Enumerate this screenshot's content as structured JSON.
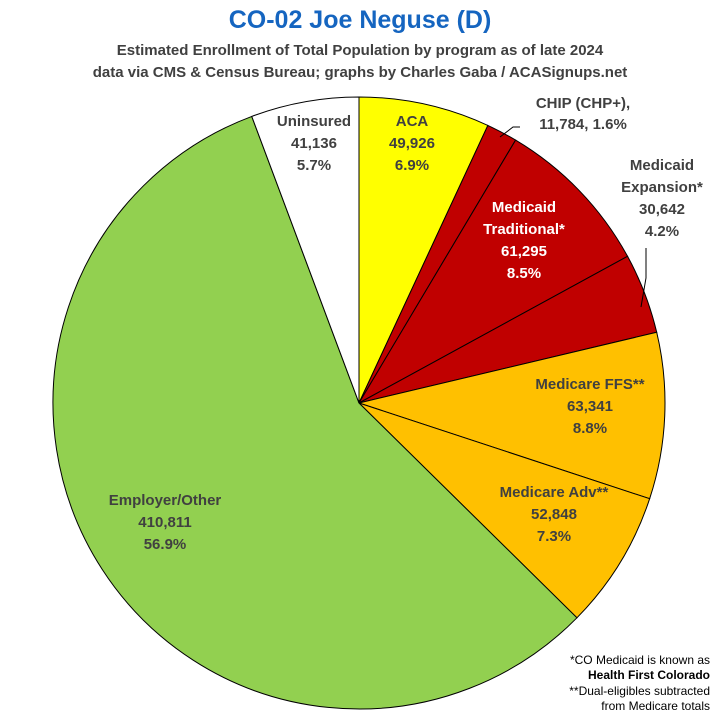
{
  "header": {
    "title": "CO-02 Joe Neguse (D)",
    "subtitle1": "Estimated Enrollment of Total Population by program as of late 2024",
    "subtitle2": "data via CMS & Census Bureau; graphs by Charles Gaba / ACASignups.net"
  },
  "chart_data": {
    "type": "pie",
    "slices": [
      {
        "label": [
          "ACA"
        ],
        "value_text": "49,926",
        "pct_text": "6.9%",
        "value": 49926,
        "color": "#ffff00",
        "text_color": "#404040"
      },
      {
        "label": [
          "CHIP (CHP+),"
        ],
        "value_text": "11,784",
        "pct_text": "1.6%",
        "value": 11784,
        "color": "#c00000",
        "text_color": "#404040"
      },
      {
        "label": [
          "Medicaid",
          "Traditional*"
        ],
        "value_text": "61,295",
        "pct_text": "8.5%",
        "value": 61295,
        "color": "#c00000",
        "text_color": "#ffffff"
      },
      {
        "label": [
          "Medicaid",
          "Expansion*"
        ],
        "value_text": "30,642",
        "pct_text": "4.2%",
        "value": 30642,
        "color": "#c00000",
        "text_color": "#404040"
      },
      {
        "label": [
          "Medicare FFS**"
        ],
        "value_text": "63,341",
        "pct_text": "8.8%",
        "value": 63341,
        "color": "#ffc000",
        "text_color": "#404040"
      },
      {
        "label": [
          "Medicare Adv**"
        ],
        "value_text": "52,848",
        "pct_text": "7.3%",
        "value": 52848,
        "color": "#ffc000",
        "text_color": "#404040"
      },
      {
        "label": [
          "Employer/Other"
        ],
        "value_text": "410,811",
        "pct_text": "56.9%",
        "value": 410811,
        "color": "#92d050",
        "text_color": "#404040"
      },
      {
        "label": [
          "Uninsured"
        ],
        "value_text": "41,136",
        "pct_text": "5.7%",
        "value": 41136,
        "color": "#ffffff",
        "text_color": "#404040"
      }
    ]
  },
  "footnotes": {
    "line1": "*CO Medicaid is known as",
    "line2": "Health First Colorado",
    "line3": "**Dual-eligibles subtracted",
    "line4": "from Medicare totals"
  }
}
